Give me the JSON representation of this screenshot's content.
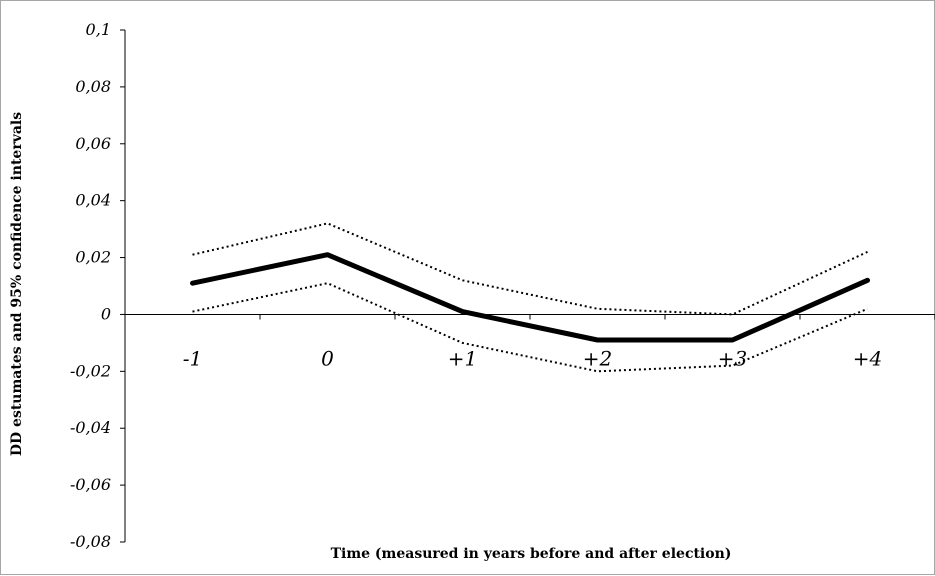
{
  "chart_data": {
    "type": "line",
    "title": "",
    "xlabel": "Time (measured in years before and after election)",
    "ylabel": "DD estumates and 95% confidence intervals",
    "categories": [
      "-1",
      "0",
      "+1",
      "+2",
      "+3",
      "+4"
    ],
    "ylim": [
      -0.08,
      0.1
    ],
    "yticks": [
      0.1,
      0.08,
      0.06,
      0.04,
      0.02,
      0,
      -0.02,
      -0.04,
      -0.06,
      -0.08
    ],
    "ytick_labels": [
      "0,1",
      "0,08",
      "0,06",
      "0,04",
      "0,02",
      "0",
      "-0,02",
      "-0,04",
      "-0,06",
      "-0,08"
    ],
    "grid": false,
    "legend": "none",
    "series": [
      {
        "role": "estimate",
        "style": "solid",
        "color": "#000000",
        "values": [
          0.011,
          0.021,
          0.001,
          -0.009,
          -0.009,
          0.012
        ]
      },
      {
        "role": "upper_ci",
        "style": "dotted",
        "color": "#000000",
        "values": [
          0.021,
          0.032,
          0.012,
          0.002,
          0.0,
          0.022
        ]
      },
      {
        "role": "lower_ci",
        "style": "dotted",
        "color": "#000000",
        "values": [
          0.001,
          0.011,
          -0.01,
          -0.02,
          -0.018,
          0.002
        ]
      }
    ]
  }
}
